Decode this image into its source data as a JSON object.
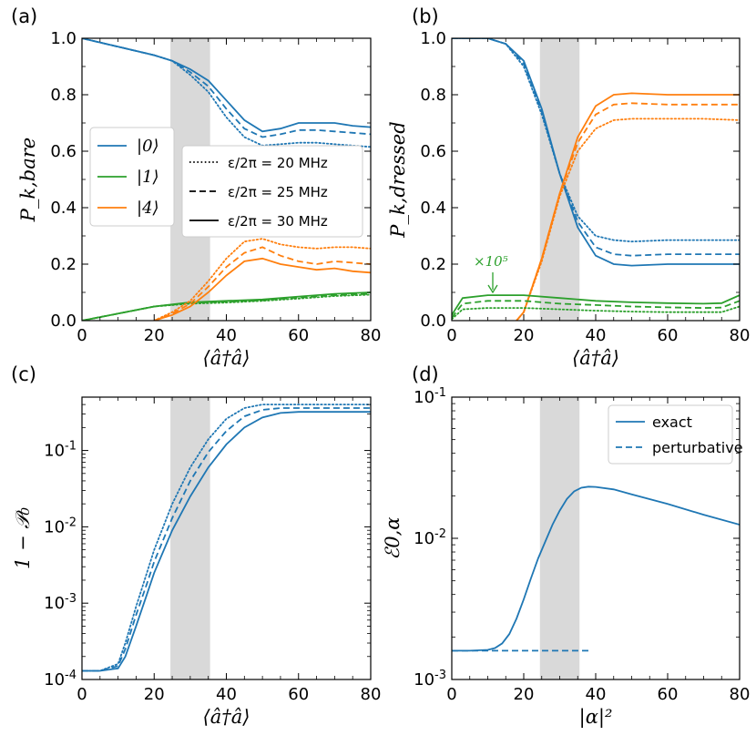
{
  "colors": {
    "blue": "#1f77b4",
    "green": "#2ca02c",
    "orange": "#ff7f0e",
    "shade": "#d9d9d9",
    "axis": "#000000"
  },
  "chart_data": [
    {
      "panel": "(a)",
      "type": "line",
      "xlabel": "⟨â†â⟩",
      "ylabel": "P_k,bare",
      "xlim": [
        0,
        80
      ],
      "ylim": [
        0,
        1.0
      ],
      "xticks": [
        "0",
        "20",
        "40",
        "60",
        "80"
      ],
      "yticks": [
        "0.0",
        "0.2",
        "0.4",
        "0.6",
        "0.8",
        "1.0"
      ],
      "shaded_band": [
        24.5,
        35.5
      ],
      "legend_states": [
        "|0⟩",
        "|1⟩",
        "|4⟩"
      ],
      "legend_styles": [
        "ε/2π = 20 MHz",
        "ε/2π = 25 MHz",
        "ε/2π = 30 MHz"
      ],
      "series": [
        {
          "name": "|0⟩",
          "style": "solid",
          "color": "blue",
          "x": [
            0,
            10,
            20,
            25,
            30,
            35,
            40,
            45,
            50,
            55,
            60,
            65,
            70,
            75,
            80
          ],
          "y": [
            1.0,
            0.97,
            0.94,
            0.92,
            0.89,
            0.85,
            0.78,
            0.71,
            0.67,
            0.68,
            0.7,
            0.7,
            0.7,
            0.69,
            0.685
          ]
        },
        {
          "name": "|0⟩",
          "style": "dashed",
          "color": "blue",
          "x": [
            0,
            10,
            20,
            25,
            30,
            35,
            40,
            45,
            50,
            55,
            60,
            65,
            70,
            75,
            80
          ],
          "y": [
            1.0,
            0.97,
            0.94,
            0.92,
            0.88,
            0.83,
            0.75,
            0.68,
            0.65,
            0.66,
            0.675,
            0.675,
            0.67,
            0.665,
            0.66
          ]
        },
        {
          "name": "|0⟩",
          "style": "dotted",
          "color": "blue",
          "x": [
            0,
            10,
            20,
            25,
            30,
            35,
            40,
            45,
            50,
            55,
            60,
            65,
            70,
            75,
            80
          ],
          "y": [
            1.0,
            0.97,
            0.94,
            0.92,
            0.87,
            0.81,
            0.72,
            0.65,
            0.62,
            0.625,
            0.63,
            0.63,
            0.625,
            0.62,
            0.615
          ]
        },
        {
          "name": "|1⟩",
          "style": "solid",
          "color": "green",
          "x": [
            0,
            10,
            20,
            30,
            40,
            50,
            60,
            70,
            80
          ],
          "y": [
            0.0,
            0.025,
            0.05,
            0.065,
            0.07,
            0.075,
            0.085,
            0.095,
            0.1
          ]
        },
        {
          "name": "|1⟩",
          "style": "dashed",
          "color": "green",
          "x": [
            0,
            10,
            20,
            30,
            40,
            50,
            60,
            70,
            80
          ],
          "y": [
            0.0,
            0.025,
            0.05,
            0.063,
            0.067,
            0.072,
            0.082,
            0.09,
            0.095
          ]
        },
        {
          "name": "|1⟩",
          "style": "dotted",
          "color": "green",
          "x": [
            0,
            10,
            20,
            30,
            40,
            50,
            60,
            70,
            80
          ],
          "y": [
            0.0,
            0.025,
            0.05,
            0.06,
            0.064,
            0.07,
            0.078,
            0.087,
            0.092
          ]
        },
        {
          "name": "|4⟩",
          "style": "solid",
          "color": "orange",
          "x": [
            20,
            25,
            30,
            35,
            40,
            45,
            50,
            55,
            60,
            65,
            70,
            75,
            80
          ],
          "y": [
            0.0,
            0.02,
            0.05,
            0.1,
            0.16,
            0.21,
            0.22,
            0.2,
            0.19,
            0.18,
            0.185,
            0.175,
            0.17
          ]
        },
        {
          "name": "|4⟩",
          "style": "dashed",
          "color": "orange",
          "x": [
            20,
            25,
            30,
            35,
            40,
            45,
            50,
            55,
            60,
            65,
            70,
            75,
            80
          ],
          "y": [
            0.0,
            0.025,
            0.06,
            0.12,
            0.19,
            0.24,
            0.26,
            0.23,
            0.21,
            0.2,
            0.21,
            0.205,
            0.2
          ]
        },
        {
          "name": "|4⟩",
          "style": "dotted",
          "color": "orange",
          "x": [
            20,
            25,
            30,
            35,
            40,
            45,
            50,
            55,
            60,
            65,
            70,
            75,
            80
          ],
          "y": [
            0.0,
            0.03,
            0.07,
            0.14,
            0.22,
            0.28,
            0.29,
            0.27,
            0.26,
            0.255,
            0.26,
            0.26,
            0.255
          ]
        }
      ]
    },
    {
      "panel": "(b)",
      "type": "line",
      "xlabel": "⟨â†â⟩",
      "ylabel": "P_k,dressed",
      "xlim": [
        0,
        80
      ],
      "ylim": [
        0,
        1.0
      ],
      "xticks": [
        "0",
        "20",
        "40",
        "60",
        "80"
      ],
      "yticks": [
        "0.0",
        "0.2",
        "0.4",
        "0.6",
        "0.8",
        "1.0"
      ],
      "shaded_band": [
        24.5,
        35.5
      ],
      "annotation": "×10⁵",
      "series": [
        {
          "name": "|0⟩",
          "style": "solid",
          "color": "blue",
          "x": [
            0,
            10,
            15,
            20,
            25,
            30,
            35,
            40,
            45,
            50,
            60,
            70,
            80
          ],
          "y": [
            1.0,
            1.0,
            0.98,
            0.92,
            0.75,
            0.52,
            0.33,
            0.23,
            0.2,
            0.195,
            0.2,
            0.2,
            0.2
          ]
        },
        {
          "name": "|0⟩",
          "style": "dashed",
          "color": "blue",
          "x": [
            0,
            10,
            15,
            20,
            25,
            30,
            35,
            40,
            45,
            50,
            60,
            70,
            80
          ],
          "y": [
            1.0,
            1.0,
            0.98,
            0.91,
            0.74,
            0.52,
            0.35,
            0.26,
            0.235,
            0.23,
            0.235,
            0.235,
            0.235
          ]
        },
        {
          "name": "|0⟩",
          "style": "dotted",
          "color": "blue",
          "x": [
            0,
            10,
            15,
            20,
            25,
            30,
            35,
            40,
            45,
            50,
            60,
            70,
            80
          ],
          "y": [
            1.0,
            1.0,
            0.98,
            0.9,
            0.73,
            0.52,
            0.37,
            0.3,
            0.285,
            0.28,
            0.285,
            0.285,
            0.285
          ]
        },
        {
          "name": "|4⟩",
          "style": "solid",
          "color": "orange",
          "x": [
            18,
            20,
            25,
            30,
            35,
            40,
            45,
            50,
            60,
            70,
            80
          ],
          "y": [
            0.0,
            0.03,
            0.22,
            0.45,
            0.65,
            0.76,
            0.8,
            0.805,
            0.8,
            0.8,
            0.8
          ]
        },
        {
          "name": "|4⟩",
          "style": "dashed",
          "color": "orange",
          "x": [
            18,
            20,
            25,
            30,
            35,
            40,
            45,
            50,
            60,
            70,
            80
          ],
          "y": [
            0.0,
            0.03,
            0.22,
            0.45,
            0.63,
            0.73,
            0.765,
            0.77,
            0.765,
            0.765,
            0.765
          ]
        },
        {
          "name": "|4⟩",
          "style": "dotted",
          "color": "orange",
          "x": [
            18,
            20,
            25,
            30,
            35,
            40,
            45,
            50,
            60,
            70,
            80
          ],
          "y": [
            0.0,
            0.03,
            0.21,
            0.44,
            0.6,
            0.68,
            0.71,
            0.715,
            0.715,
            0.715,
            0.71
          ]
        },
        {
          "name": "|1⟩",
          "style": "solid",
          "color": "green",
          "x": [
            0,
            3,
            10,
            20,
            30,
            40,
            50,
            60,
            70,
            75,
            80
          ],
          "y": [
            0.02,
            0.08,
            0.09,
            0.09,
            0.08,
            0.07,
            0.065,
            0.062,
            0.06,
            0.062,
            0.09
          ]
        },
        {
          "name": "|1⟩",
          "style": "dashed",
          "color": "green",
          "x": [
            0,
            3,
            10,
            20,
            30,
            40,
            50,
            60,
            70,
            75,
            80
          ],
          "y": [
            0.01,
            0.06,
            0.07,
            0.07,
            0.06,
            0.055,
            0.05,
            0.047,
            0.045,
            0.046,
            0.07
          ]
        },
        {
          "name": "|1⟩",
          "style": "dotted",
          "color": "green",
          "x": [
            0,
            3,
            10,
            20,
            30,
            40,
            50,
            60,
            70,
            75,
            80
          ],
          "y": [
            0.005,
            0.04,
            0.045,
            0.045,
            0.04,
            0.035,
            0.032,
            0.03,
            0.03,
            0.03,
            0.05
          ]
        }
      ]
    },
    {
      "panel": "(c)",
      "type": "line",
      "xlabel": "⟨â†â⟩",
      "ylabel": "1 − 𝒫₀",
      "xlim": [
        0,
        80
      ],
      "ylim": [
        0.0001,
        0.5
      ],
      "yscale": "log",
      "xticks": [
        "0",
        "20",
        "40",
        "60",
        "80"
      ],
      "yticks": [
        "10-4",
        "10-3",
        "10-2",
        "10-1"
      ],
      "shaded_band": [
        24.5,
        35.5
      ],
      "series": [
        {
          "name": "solid",
          "style": "solid",
          "color": "blue",
          "x": [
            0,
            5,
            10,
            12,
            15,
            18,
            20,
            25,
            30,
            35,
            40,
            45,
            50,
            55,
            60,
            70,
            80
          ],
          "y": [
            0.00013,
            0.00013,
            0.00014,
            0.0002,
            0.0005,
            0.0013,
            0.0025,
            0.009,
            0.025,
            0.06,
            0.12,
            0.2,
            0.27,
            0.31,
            0.32,
            0.32,
            0.32
          ]
        },
        {
          "name": "dashed",
          "style": "dashed",
          "color": "blue",
          "x": [
            0,
            5,
            10,
            12,
            15,
            18,
            20,
            25,
            30,
            35,
            40,
            45,
            50,
            55,
            60,
            70,
            80
          ],
          "y": [
            0.00013,
            0.00013,
            0.00015,
            0.00025,
            0.0007,
            0.0018,
            0.0035,
            0.013,
            0.04,
            0.095,
            0.18,
            0.28,
            0.34,
            0.36,
            0.36,
            0.36,
            0.36
          ]
        },
        {
          "name": "dotted",
          "style": "dotted",
          "color": "blue",
          "x": [
            0,
            5,
            10,
            12,
            15,
            18,
            20,
            25,
            30,
            35,
            40,
            45,
            50,
            55,
            60,
            70,
            80
          ],
          "y": [
            0.00013,
            0.00013,
            0.00016,
            0.0003,
            0.0009,
            0.0025,
            0.005,
            0.02,
            0.06,
            0.14,
            0.26,
            0.36,
            0.4,
            0.4,
            0.4,
            0.4,
            0.4
          ]
        }
      ]
    },
    {
      "panel": "(d)",
      "type": "line",
      "xlabel": "|α|²",
      "ylabel": "ℰ0,α",
      "xlim": [
        0,
        80
      ],
      "ylim": [
        0.001,
        0.1
      ],
      "yscale": "log",
      "xticks": [
        "0",
        "20",
        "40",
        "60",
        "80"
      ],
      "yticks": [
        "10-3",
        "10-2",
        "10-1"
      ],
      "shaded_band": [
        24.5,
        35.5
      ],
      "legend": [
        "exact",
        "perturbative"
      ],
      "series": [
        {
          "name": "exact",
          "style": "solid",
          "color": "blue",
          "x": [
            0,
            5,
            10,
            12,
            14,
            16,
            18,
            20,
            22,
            24,
            26,
            28,
            30,
            32,
            34,
            36,
            38,
            40,
            45,
            50,
            60,
            70,
            80
          ],
          "y": [
            0.0016,
            0.0016,
            0.00162,
            0.00167,
            0.0018,
            0.0021,
            0.0027,
            0.0037,
            0.0052,
            0.0072,
            0.0095,
            0.0125,
            0.0157,
            0.019,
            0.0215,
            0.0228,
            0.0232,
            0.0231,
            0.0222,
            0.0205,
            0.0175,
            0.0147,
            0.0125
          ]
        },
        {
          "name": "perturbative",
          "style": "dashed",
          "color": "blue",
          "x": [
            0,
            38
          ],
          "y": [
            0.0016,
            0.0016
          ]
        }
      ]
    }
  ]
}
